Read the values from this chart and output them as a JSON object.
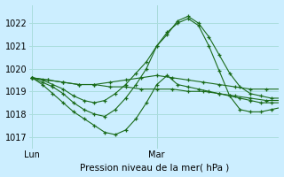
{
  "title": "Pression niveau de la mer( hPa )",
  "bg_color": "#cceeff",
  "grid_color": "#aadddd",
  "line_color": "#1a6b1a",
  "ylim": [
    1016.5,
    1022.8
  ],
  "yticks": [
    1017,
    1018,
    1019,
    1020,
    1021,
    1022
  ],
  "xlim": [
    -0.5,
    47.5
  ],
  "vline_x": 24,
  "series": [
    {
      "x": [
        0,
        3,
        6,
        9,
        12,
        15,
        18,
        21,
        24,
        27,
        30,
        33,
        36,
        39,
        42,
        45,
        48
      ],
      "y": [
        1019.6,
        1019.5,
        1019.4,
        1019.3,
        1019.3,
        1019.2,
        1019.2,
        1019.1,
        1019.1,
        1019.1,
        1019.0,
        1019.0,
        1018.9,
        1018.8,
        1018.7,
        1018.6,
        1018.6
      ]
    },
    {
      "x": [
        0,
        3,
        6,
        9,
        12,
        15,
        18,
        21,
        24,
        27,
        30,
        33,
        36,
        39,
        42,
        45,
        48
      ],
      "y": [
        1019.6,
        1019.5,
        1019.4,
        1019.3,
        1019.3,
        1019.4,
        1019.5,
        1019.6,
        1019.7,
        1019.6,
        1019.5,
        1019.4,
        1019.3,
        1019.2,
        1019.1,
        1019.1,
        1019.1
      ]
    },
    {
      "x": [
        0,
        2,
        4,
        6,
        8,
        10,
        12,
        14,
        16,
        18,
        20,
        22,
        24,
        26,
        28,
        30,
        32,
        34,
        36,
        38,
        40,
        42,
        44,
        46,
        48
      ],
      "y": [
        1019.6,
        1019.5,
        1019.3,
        1019.1,
        1018.8,
        1018.6,
        1018.5,
        1018.6,
        1018.9,
        1019.3,
        1019.8,
        1020.3,
        1021.0,
        1021.5,
        1022.1,
        1022.3,
        1022.0,
        1021.4,
        1020.6,
        1019.8,
        1019.2,
        1018.9,
        1018.8,
        1018.7,
        1018.7
      ]
    },
    {
      "x": [
        0,
        2,
        4,
        6,
        8,
        10,
        12,
        14,
        16,
        18,
        20,
        22,
        24,
        26,
        28,
        30,
        32,
        34,
        36,
        38,
        40,
        42,
        44,
        46,
        48
      ],
      "y": [
        1019.6,
        1019.4,
        1019.2,
        1018.9,
        1018.5,
        1018.2,
        1018.0,
        1017.9,
        1018.2,
        1018.7,
        1019.3,
        1020.0,
        1021.0,
        1021.6,
        1022.0,
        1022.2,
        1021.9,
        1021.0,
        1019.9,
        1018.8,
        1018.2,
        1018.1,
        1018.1,
        1018.2,
        1018.3
      ]
    },
    {
      "x": [
        0,
        2,
        4,
        6,
        8,
        10,
        12,
        14,
        16,
        18,
        20,
        22,
        24,
        26,
        28,
        30,
        32,
        34,
        36,
        38,
        40,
        42,
        44,
        46,
        48
      ],
      "y": [
        1019.6,
        1019.3,
        1018.9,
        1018.5,
        1018.1,
        1017.8,
        1017.5,
        1017.2,
        1017.1,
        1017.3,
        1017.8,
        1018.5,
        1019.3,
        1019.7,
        1019.3,
        1019.2,
        1019.1,
        1019.0,
        1018.9,
        1018.8,
        1018.7,
        1018.6,
        1018.5,
        1018.5,
        1018.5
      ]
    }
  ],
  "lun_x": 0,
  "mar_x": 24
}
